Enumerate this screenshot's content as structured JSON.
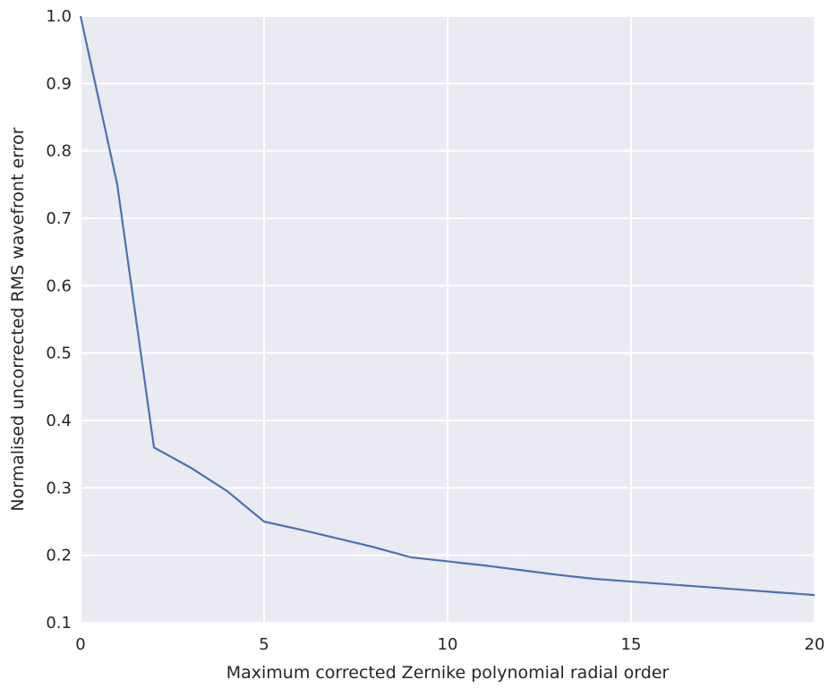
{
  "chart_data": {
    "type": "line",
    "title": "",
    "xlabel": "Maximum corrected Zernike polynomial radial order",
    "ylabel": "Normalised uncorrected RMS wavefront error",
    "xlim": [
      0,
      20
    ],
    "ylim": [
      0.1,
      1.0
    ],
    "x_ticks": [
      "0",
      "5",
      "10",
      "15",
      "20"
    ],
    "y_ticks": [
      "0.1",
      "0.2",
      "0.3",
      "0.4",
      "0.5",
      "0.6",
      "0.7",
      "0.8",
      "0.9",
      "1.0"
    ],
    "grid": true,
    "legend": "none",
    "series": [
      {
        "color": "#4c72b0",
        "x": [
          0,
          1,
          2,
          3,
          4,
          5,
          6,
          7,
          8,
          9,
          10,
          11,
          12,
          13,
          14,
          15,
          16,
          17,
          18,
          19,
          20
        ],
        "y": [
          1.0,
          0.75,
          0.36,
          0.33,
          0.295,
          0.25,
          0.238,
          0.225,
          0.212,
          0.197,
          0.191,
          0.185,
          0.178,
          0.171,
          0.165,
          0.161,
          0.157,
          0.153,
          0.149,
          0.145,
          0.141
        ]
      }
    ]
  }
}
